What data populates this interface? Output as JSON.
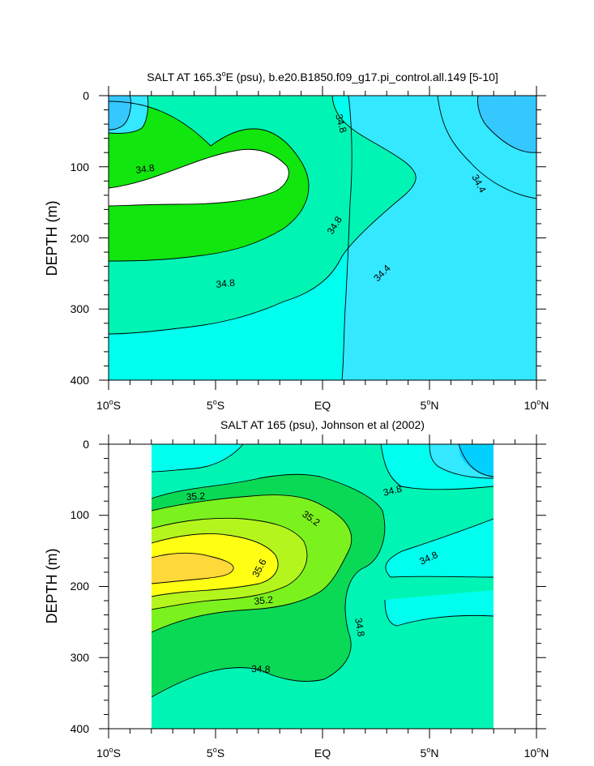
{
  "chart_data": [
    {
      "type": "contour",
      "title": "SALT AT 165.3°E (psu), b.e20.B1850.f09_g17.pi_control.all.149 [5-10]",
      "title_parts": {
        "pre": "SALT AT 165.3",
        "sup": "o",
        "post": "E (psu), b.e20.B1850.f09_g17.pi_control.all.149 [5-10]"
      },
      "ylabel": "DEPTH (m)",
      "xlim": [
        -10,
        10
      ],
      "ylim": [
        0,
        400
      ],
      "y_inverted": true,
      "x_ticks": [
        {
          "num": "10",
          "sup": "o",
          "hemi": "S"
        },
        {
          "num": "5",
          "sup": "o",
          "hemi": "S"
        },
        {
          "num": "EQ",
          "sup": "",
          "hemi": ""
        },
        {
          "num": "5",
          "sup": "o",
          "hemi": "N"
        },
        {
          "num": "10",
          "sup": "o",
          "hemi": "N"
        }
      ],
      "y_ticks": [
        "0",
        "100",
        "200",
        "300",
        "400"
      ],
      "contour_labels": [
        "34.8",
        "34.8",
        "34.8",
        "34.8",
        "34.4",
        "34.4"
      ],
      "colors": [
        "#34c8ff",
        "#33e8ff",
        "#00ffee",
        "#00f5b4",
        "#0ad956",
        "#11e60e"
      ]
    },
    {
      "type": "contour",
      "title": "SALT AT 165 (psu), Johnson et al (2002)",
      "ylabel": "DEPTH (m)",
      "xlim": [
        -10,
        10
      ],
      "ylim": [
        0,
        400
      ],
      "data_xrange": [
        -8,
        8
      ],
      "y_inverted": true,
      "x_ticks": [
        {
          "num": "10",
          "sup": "o",
          "hemi": "S"
        },
        {
          "num": "5",
          "sup": "o",
          "hemi": "S"
        },
        {
          "num": "EQ",
          "sup": "",
          "hemi": ""
        },
        {
          "num": "5",
          "sup": "o",
          "hemi": "N"
        },
        {
          "num": "10",
          "sup": "o",
          "hemi": "N"
        }
      ],
      "y_ticks": [
        "0",
        "100",
        "200",
        "300",
        "400"
      ],
      "contour_labels": [
        "35.2",
        "35.2",
        "35.6",
        "35.2",
        "34.8",
        "34.8",
        "34.8",
        "34.8"
      ],
      "colors": [
        "#02d1ff",
        "#33e8ff",
        "#00ffee",
        "#00f5b4",
        "#0ad956",
        "#7bf21e",
        "#b4f51e",
        "#ffff14",
        "#ffd83a"
      ]
    }
  ]
}
